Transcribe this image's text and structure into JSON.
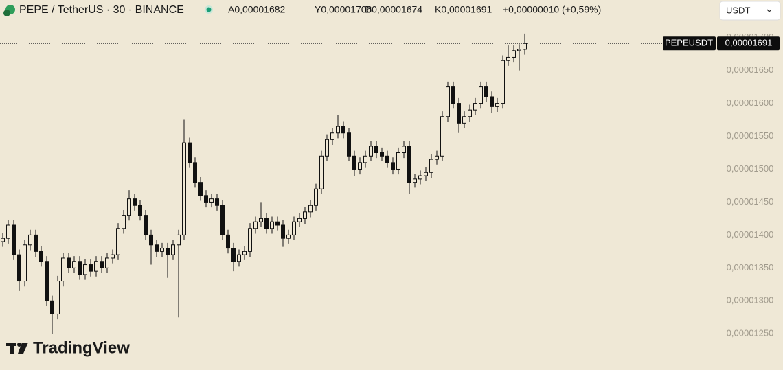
{
  "chart_data": {
    "type": "candlestick",
    "title": "PEPE / TetherUS · 30 · BINANCE",
    "ohlc_legend": [
      "A0,00001682",
      "Y0,00001706",
      "D0,00001674",
      "K0,00001691",
      "+0,00000010 (+0,59%)"
    ],
    "currency_select": "USDT",
    "symbol": "PEPEUSDT",
    "last_price": {
      "value": 1.691e-05,
      "label": "0,00001691"
    },
    "watermark": "TradingView",
    "up_color": "#efe8d6",
    "down_color": "#111111",
    "ylim": [
      1.195e-05,
      1.757e-05
    ],
    "yticks": [
      {
        "value": 1.7e-05,
        "label": "0,00001700"
      },
      {
        "value": 1.65e-05,
        "label": "0,00001650"
      },
      {
        "value": 1.6e-05,
        "label": "0,00001600"
      },
      {
        "value": 1.55e-05,
        "label": "0,00001550"
      },
      {
        "value": 1.5e-05,
        "label": "0,00001500"
      },
      {
        "value": 1.45e-05,
        "label": "0,00001450"
      },
      {
        "value": 1.4e-05,
        "label": "0,00001400"
      },
      {
        "value": 1.35e-05,
        "label": "0,00001350"
      },
      {
        "value": 1.3e-05,
        "label": "0,00001300"
      },
      {
        "value": 1.25e-05,
        "label": "0,00001250"
      }
    ],
    "open": [
      1.39e-05,
      1.395e-05,
      1.415e-05,
      1.37e-05,
      1.33e-05,
      1.385e-05,
      1.4e-05,
      1.375e-05,
      1.36e-05,
      1.3e-05,
      1.28e-05,
      1.33e-05,
      1.365e-05,
      1.35e-05,
      1.36e-05,
      1.34e-05,
      1.355e-05,
      1.345e-05,
      1.36e-05,
      1.35e-05,
      1.365e-05,
      1.37e-05,
      1.41e-05,
      1.43e-05,
      1.455e-05,
      1.445e-05,
      1.43e-05,
      1.4e-05,
      1.385e-05,
      1.375e-05,
      1.38e-05,
      1.37e-05,
      1.385e-05,
      1.4e-05,
      1.54e-05,
      1.51e-05,
      1.48e-05,
      1.46e-05,
      1.45e-05,
      1.455e-05,
      1.445e-05,
      1.4e-05,
      1.38e-05,
      1.36e-05,
      1.37e-05,
      1.375e-05,
      1.41e-05,
      1.42e-05,
      1.425e-05,
      1.41e-05,
      1.42e-05,
      1.415e-05,
      1.395e-05,
      1.4e-05,
      1.42e-05,
      1.425e-05,
      1.435e-05,
      1.445e-05,
      1.47e-05,
      1.52e-05,
      1.545e-05,
      1.555e-05,
      1.565e-05,
      1.555e-05,
      1.52e-05,
      1.5e-05,
      1.51e-05,
      1.52e-05,
      1.535e-05,
      1.525e-05,
      1.52e-05,
      1.51e-05,
      1.5e-05,
      1.525e-05,
      1.535e-05,
      1.48e-05,
      1.485e-05,
      1.49e-05,
      1.495e-05,
      1.515e-05,
      1.52e-05,
      1.58e-05,
      1.625e-05,
      1.6e-05,
      1.57e-05,
      1.58e-05,
      1.59e-05,
      1.6e-05,
      1.625e-05,
      1.61e-05,
      1.595e-05,
      1.6e-05,
      1.665e-05,
      1.67e-05,
      1.68e-05,
      1.682e-05
    ],
    "high": [
      1.403e-05,
      1.423e-05,
      1.423e-05,
      1.378e-05,
      1.393e-05,
      1.408e-05,
      1.408e-05,
      1.383e-05,
      1.368e-05,
      1.308e-05,
      1.338e-05,
      1.373e-05,
      1.373e-05,
      1.368e-05,
      1.368e-05,
      1.363e-05,
      1.363e-05,
      1.368e-05,
      1.368e-05,
      1.373e-05,
      1.378e-05,
      1.418e-05,
      1.438e-05,
      1.468e-05,
      1.463e-05,
      1.453e-05,
      1.438e-05,
      1.408e-05,
      1.393e-05,
      1.388e-05,
      1.388e-05,
      1.393e-05,
      1.408e-05,
      1.575e-05,
      1.548e-05,
      1.518e-05,
      1.488e-05,
      1.468e-05,
      1.463e-05,
      1.463e-05,
      1.453e-05,
      1.408e-05,
      1.388e-05,
      1.378e-05,
      1.383e-05,
      1.418e-05,
      1.428e-05,
      1.45e-05,
      1.433e-05,
      1.428e-05,
      1.428e-05,
      1.423e-05,
      1.408e-05,
      1.428e-05,
      1.433e-05,
      1.443e-05,
      1.453e-05,
      1.478e-05,
      1.528e-05,
      1.553e-05,
      1.563e-05,
      1.582e-05,
      1.573e-05,
      1.563e-05,
      1.528e-05,
      1.518e-05,
      1.528e-05,
      1.543e-05,
      1.543e-05,
      1.533e-05,
      1.528e-05,
      1.518e-05,
      1.533e-05,
      1.543e-05,
      1.543e-05,
      1.493e-05,
      1.498e-05,
      1.503e-05,
      1.523e-05,
      1.528e-05,
      1.588e-05,
      1.633e-05,
      1.633e-05,
      1.608e-05,
      1.588e-05,
      1.598e-05,
      1.608e-05,
      1.633e-05,
      1.633e-05,
      1.618e-05,
      1.608e-05,
      1.673e-05,
      1.688e-05,
      1.688e-05,
      1.69e-05,
      1.706e-05
    ],
    "low": [
      1.382e-05,
      1.387e-05,
      1.362e-05,
      1.315e-05,
      1.322e-05,
      1.377e-05,
      1.367e-05,
      1.352e-05,
      1.292e-05,
      1.25e-05,
      1.272e-05,
      1.322e-05,
      1.342e-05,
      1.342e-05,
      1.332e-05,
      1.332e-05,
      1.337e-05,
      1.337e-05,
      1.342e-05,
      1.342e-05,
      1.357e-05,
      1.362e-05,
      1.402e-05,
      1.422e-05,
      1.437e-05,
      1.422e-05,
      1.392e-05,
      1.355e-05,
      1.367e-05,
      1.367e-05,
      1.335e-05,
      1.362e-05,
      1.275e-05,
      1.392e-05,
      1.502e-05,
      1.472e-05,
      1.452e-05,
      1.442e-05,
      1.442e-05,
      1.437e-05,
      1.392e-05,
      1.372e-05,
      1.345e-05,
      1.352e-05,
      1.362e-05,
      1.367e-05,
      1.402e-05,
      1.412e-05,
      1.402e-05,
      1.402e-05,
      1.407e-05,
      1.382e-05,
      1.387e-05,
      1.392e-05,
      1.412e-05,
      1.417e-05,
      1.427e-05,
      1.437e-05,
      1.462e-05,
      1.512e-05,
      1.537e-05,
      1.547e-05,
      1.547e-05,
      1.512e-05,
      1.49e-05,
      1.492e-05,
      1.502e-05,
      1.512e-05,
      1.517e-05,
      1.512e-05,
      1.502e-05,
      1.492e-05,
      1.492e-05,
      1.517e-05,
      1.462e-05,
      1.472e-05,
      1.477e-05,
      1.482e-05,
      1.487e-05,
      1.507e-05,
      1.512e-05,
      1.572e-05,
      1.592e-05,
      1.555e-05,
      1.562e-05,
      1.572e-05,
      1.582e-05,
      1.592e-05,
      1.602e-05,
      1.585e-05,
      1.587e-05,
      1.592e-05,
      1.657e-05,
      1.662e-05,
      1.65e-05,
      1.674e-05
    ],
    "close": [
      1.395e-05,
      1.415e-05,
      1.37e-05,
      1.33e-05,
      1.385e-05,
      1.4e-05,
      1.375e-05,
      1.36e-05,
      1.3e-05,
      1.28e-05,
      1.33e-05,
      1.365e-05,
      1.35e-05,
      1.36e-05,
      1.34e-05,
      1.355e-05,
      1.345e-05,
      1.36e-05,
      1.35e-05,
      1.365e-05,
      1.37e-05,
      1.41e-05,
      1.43e-05,
      1.455e-05,
      1.445e-05,
      1.43e-05,
      1.4e-05,
      1.385e-05,
      1.375e-05,
      1.38e-05,
      1.37e-05,
      1.385e-05,
      1.4e-05,
      1.54e-05,
      1.51e-05,
      1.48e-05,
      1.46e-05,
      1.45e-05,
      1.455e-05,
      1.445e-05,
      1.4e-05,
      1.38e-05,
      1.36e-05,
      1.37e-05,
      1.375e-05,
      1.41e-05,
      1.42e-05,
      1.425e-05,
      1.41e-05,
      1.42e-05,
      1.415e-05,
      1.395e-05,
      1.4e-05,
      1.42e-05,
      1.425e-05,
      1.435e-05,
      1.445e-05,
      1.47e-05,
      1.52e-05,
      1.545e-05,
      1.555e-05,
      1.565e-05,
      1.555e-05,
      1.52e-05,
      1.5e-05,
      1.51e-05,
      1.52e-05,
      1.535e-05,
      1.525e-05,
      1.52e-05,
      1.51e-05,
      1.5e-05,
      1.525e-05,
      1.535e-05,
      1.48e-05,
      1.485e-05,
      1.49e-05,
      1.495e-05,
      1.515e-05,
      1.52e-05,
      1.58e-05,
      1.625e-05,
      1.6e-05,
      1.57e-05,
      1.58e-05,
      1.59e-05,
      1.6e-05,
      1.625e-05,
      1.61e-05,
      1.595e-05,
      1.6e-05,
      1.665e-05,
      1.67e-05,
      1.68e-05,
      1.682e-05,
      1.691e-05
    ]
  }
}
